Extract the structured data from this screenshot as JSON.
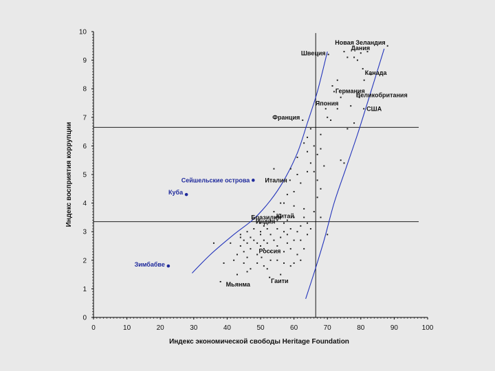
{
  "chart_data": {
    "type": "scatter",
    "title": "",
    "xlabel": "Индекс экономической свободы Heritage Foundation",
    "ylabel": "Индекс восприятия коррупции",
    "xlim": [
      0,
      100
    ],
    "ylim": [
      0,
      10
    ],
    "xticks": [
      "0",
      "10",
      "20",
      "30",
      "40",
      "50",
      "60",
      "70",
      "80",
      "90",
      "100"
    ],
    "yticks": [
      "0",
      "1",
      "2",
      "3",
      "4",
      "5",
      "6",
      "7",
      "8",
      "9",
      "10"
    ],
    "reference_lines": {
      "x": 66.5,
      "y": [
        6.65,
        3.35
      ]
    },
    "envelope_curves": [
      {
        "name": "upper",
        "points": [
          [
            29.5,
            1.55
          ],
          [
            35,
            2.2
          ],
          [
            42,
            2.9
          ],
          [
            48,
            3.45
          ],
          [
            53,
            4.1
          ],
          [
            57,
            4.8
          ],
          [
            61,
            5.75
          ],
          [
            64,
            6.8
          ],
          [
            67,
            7.9
          ],
          [
            70,
            9.3
          ]
        ]
      },
      {
        "name": "lower",
        "points": [
          [
            63.5,
            0.65
          ],
          [
            66,
            1.55
          ],
          [
            69,
            2.7
          ],
          [
            72,
            4.0
          ],
          [
            75.5,
            5.2
          ],
          [
            79,
            6.4
          ],
          [
            82.5,
            7.7
          ],
          [
            87,
            9.4
          ]
        ]
      }
    ],
    "series": [
      {
        "name": "labeled",
        "points": [
          {
            "label": "Швеция",
            "x": 70.3,
            "y": 9.2
          },
          {
            "label": "Дания",
            "x": 75,
            "y": 9.3
          },
          {
            "label": "Новая Зеландия",
            "x": 88,
            "y": 9.5
          },
          {
            "label": "Канада",
            "x": 80.6,
            "y": 8.7
          },
          {
            "label": "Германия",
            "x": 72,
            "y": 7.9
          },
          {
            "label": "Великобритания",
            "x": 79.6,
            "y": 7.7
          },
          {
            "label": "Япония",
            "x": 69.5,
            "y": 7.3
          },
          {
            "label": "США",
            "x": 80.9,
            "y": 7.3
          },
          {
            "label": "Франция",
            "x": 62.6,
            "y": 6.9
          },
          {
            "label": "Италия",
            "x": 58.8,
            "y": 4.8
          },
          {
            "label": "Китай",
            "x": 54.3,
            "y": 3.5
          },
          {
            "label": "Бразилия",
            "x": 47.8,
            "y": 3.45
          },
          {
            "label": "Индия",
            "x": 49.8,
            "y": 3.3
          },
          {
            "label": "Россия",
            "x": 50.3,
            "y": 2.1
          },
          {
            "label": "Мьянма",
            "x": 38,
            "y": 1.25
          },
          {
            "label": "Гаити",
            "x": 52.7,
            "y": 1.4
          }
        ]
      },
      {
        "name": "highlighted",
        "points": [
          {
            "label": "Сейшельские острова",
            "x": 47.8,
            "y": 4.8
          },
          {
            "label": "Куба",
            "x": 27.8,
            "y": 4.3
          },
          {
            "label": "Зимбабве",
            "x": 22.4,
            "y": 1.8
          }
        ]
      },
      {
        "name": "other countries",
        "points": [
          [
            76,
            9.1
          ],
          [
            78,
            9.1
          ],
          [
            80,
            9.25
          ],
          [
            82,
            9.3
          ],
          [
            79,
            9.0
          ],
          [
            73,
            8.3
          ],
          [
            81,
            8.3
          ],
          [
            83,
            8.5
          ],
          [
            71.5,
            8.1
          ],
          [
            74,
            7.7
          ],
          [
            77,
            7.4
          ],
          [
            70,
            7.0
          ],
          [
            71,
            6.9
          ],
          [
            73,
            7.3
          ],
          [
            78,
            6.8
          ],
          [
            76,
            6.6
          ],
          [
            65,
            6.6
          ],
          [
            68,
            6.4
          ],
          [
            64,
            6.3
          ],
          [
            63,
            6.1
          ],
          [
            66,
            6.0
          ],
          [
            68,
            5.9
          ],
          [
            64,
            5.8
          ],
          [
            67,
            5.7
          ],
          [
            61,
            5.6
          ],
          [
            65,
            5.4
          ],
          [
            69,
            5.3
          ],
          [
            74,
            5.5
          ],
          [
            75,
            5.4
          ],
          [
            59,
            5.2
          ],
          [
            61,
            5.0
          ],
          [
            64,
            5.1
          ],
          [
            66,
            5.1
          ],
          [
            67,
            4.8
          ],
          [
            68,
            4.5
          ],
          [
            62,
            4.7
          ],
          [
            60,
            4.4
          ],
          [
            58,
            4.3
          ],
          [
            56,
            4.0
          ],
          [
            60,
            3.9
          ],
          [
            63,
            3.8
          ],
          [
            66,
            3.7
          ],
          [
            68,
            3.5
          ],
          [
            64,
            3.3
          ],
          [
            62,
            3.2
          ],
          [
            57,
            3.3
          ],
          [
            55,
            3.4
          ],
          [
            53,
            3.4
          ],
          [
            51,
            3.2
          ],
          [
            50,
            3.0
          ],
          [
            48,
            3.1
          ],
          [
            46,
            3.0
          ],
          [
            44,
            2.9
          ],
          [
            45,
            2.7
          ],
          [
            47,
            2.8
          ],
          [
            49,
            2.6
          ],
          [
            51,
            2.7
          ],
          [
            53,
            2.9
          ],
          [
            55,
            3.1
          ],
          [
            56,
            2.8
          ],
          [
            58,
            2.6
          ],
          [
            60,
            2.7
          ],
          [
            59,
            2.4
          ],
          [
            57,
            2.3
          ],
          [
            55,
            2.5
          ],
          [
            53,
            2.3
          ],
          [
            51,
            2.4
          ],
          [
            49,
            2.2
          ],
          [
            47,
            2.4
          ],
          [
            46,
            2.1
          ],
          [
            45,
            2.3
          ],
          [
            44,
            2.5
          ],
          [
            43,
            2.2
          ],
          [
            42,
            2.0
          ],
          [
            41,
            2.6
          ],
          [
            45,
            1.9
          ],
          [
            47,
            1.7
          ],
          [
            49,
            1.9
          ],
          [
            51,
            1.8
          ],
          [
            53,
            2.0
          ],
          [
            55,
            2.0
          ],
          [
            57,
            1.9
          ],
          [
            59,
            1.8
          ],
          [
            61,
            2.2
          ],
          [
            63,
            2.4
          ],
          [
            62,
            2.7
          ],
          [
            61,
            3.0
          ],
          [
            59,
            3.1
          ],
          [
            57,
            3.0
          ],
          [
            54,
            2.7
          ],
          [
            52,
            2.6
          ],
          [
            50,
            2.5
          ],
          [
            39,
            1.9
          ],
          [
            36,
            2.6
          ],
          [
            43,
            1.5
          ],
          [
            46,
            1.6
          ],
          [
            52,
            1.7
          ],
          [
            56,
            1.5
          ],
          [
            60,
            1.9
          ],
          [
            62,
            2.0
          ],
          [
            70,
            2.9
          ],
          [
            65,
            3.1
          ],
          [
            64,
            2.9
          ],
          [
            63,
            3.5
          ],
          [
            54,
            3.7
          ],
          [
            56,
            3.6
          ],
          [
            58,
            3.4
          ],
          [
            67,
            4.2
          ],
          [
            54,
            5.2
          ],
          [
            57,
            4.0
          ],
          [
            60,
            3.5
          ],
          [
            52,
            3.1
          ],
          [
            50,
            2.9
          ],
          [
            48,
            2.7
          ],
          [
            46,
            2.6
          ],
          [
            44,
            2.8
          ],
          [
            58,
            2.9
          ]
        ]
      }
    ]
  }
}
